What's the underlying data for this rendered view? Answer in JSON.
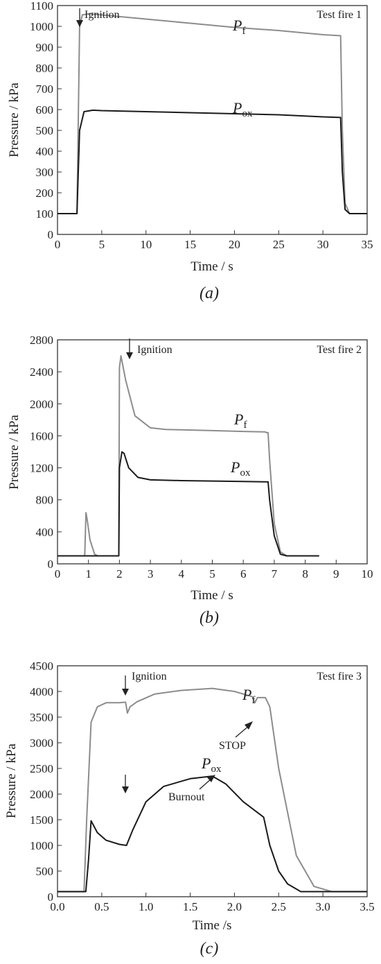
{
  "chart_data": [
    {
      "type": "line",
      "caption": "(a)",
      "test_label": "Test fire 1",
      "xlabel": "Time / s",
      "ylabel": "Pressure / kPa",
      "xlim": [
        0,
        35
      ],
      "ylim": [
        0,
        1100
      ],
      "xticks": [
        0,
        5,
        10,
        15,
        20,
        25,
        30,
        35
      ],
      "yticks": [
        0,
        100,
        200,
        300,
        400,
        500,
        600,
        700,
        800,
        900,
        1000,
        1100
      ],
      "series": [
        {
          "name": "Pf",
          "base": "P",
          "sub": "f",
          "color": "#8c8c8c",
          "x": [
            0,
            2.2,
            2.5,
            2.8,
            3.5,
            5,
            10,
            15,
            20,
            25,
            30,
            32.0,
            32.2,
            32.5,
            33,
            35
          ],
          "y": [
            100,
            100,
            1000,
            1055,
            1060,
            1055,
            1035,
            1015,
            995,
            980,
            960,
            955,
            500,
            150,
            100,
            100
          ]
        },
        {
          "name": "Pox",
          "base": "P",
          "sub": "ox",
          "color": "#1a1a1a",
          "x": [
            0,
            2.2,
            2.5,
            3.0,
            4,
            5,
            10,
            15,
            20,
            25,
            30,
            32.0,
            32.2,
            32.5,
            33,
            35
          ],
          "y": [
            100,
            100,
            500,
            590,
            597,
            595,
            590,
            585,
            580,
            575,
            565,
            562,
            300,
            120,
            100,
            100
          ]
        }
      ],
      "annotations": [
        {
          "text": "Ignition",
          "x": 2.8,
          "y": 1100
        }
      ]
    },
    {
      "type": "line",
      "caption": "(b)",
      "test_label": "Test fire 2",
      "xlabel": "Time / s",
      "ylabel": "Pressure / kPa",
      "xlim": [
        0,
        10
      ],
      "ylim": [
        0,
        2800
      ],
      "xticks": [
        0,
        1,
        2,
        3,
        4,
        5,
        6,
        7,
        8,
        9,
        10
      ],
      "yticks": [
        0,
        400,
        800,
        1200,
        1600,
        2000,
        2400,
        2800
      ],
      "series": [
        {
          "name": "Pf",
          "base": "P",
          "sub": "f",
          "color": "#8c8c8c",
          "x": [
            0,
            0.88,
            0.92,
            0.96,
            1.05,
            1.2,
            1.3,
            1.98,
            2.0,
            2.05,
            2.2,
            2.5,
            3,
            3.5,
            4,
            5,
            6,
            6.7,
            6.75,
            6.8,
            6.85,
            7.0,
            7.2,
            7.4,
            8.45
          ],
          "y": [
            100,
            100,
            640,
            550,
            300,
            120,
            100,
            100,
            2450,
            2600,
            2300,
            1850,
            1700,
            1680,
            1675,
            1665,
            1655,
            1650,
            1640,
            1640,
            1300,
            500,
            150,
            100,
            100
          ]
        },
        {
          "name": "Pox",
          "base": "P",
          "sub": "ox",
          "color": "#1a1a1a",
          "x": [
            0,
            1.98,
            2.0,
            2.08,
            2.15,
            2.3,
            2.6,
            3,
            4,
            5,
            6,
            6.8,
            6.85,
            7.0,
            7.2,
            7.4,
            8.45
          ],
          "y": [
            100,
            100,
            1200,
            1400,
            1380,
            1200,
            1080,
            1050,
            1040,
            1035,
            1030,
            1025,
            800,
            350,
            120,
            100,
            100
          ]
        }
      ],
      "annotations": [
        {
          "text": "Ignition",
          "x": 2.35,
          "y": 2800
        }
      ]
    },
    {
      "type": "line",
      "caption": "(c)",
      "test_label": "Test fire 3",
      "xlabel": "Time /s",
      "ylabel": "Pressure / kPa",
      "xlim": [
        0,
        3.5
      ],
      "ylim": [
        0,
        4500
      ],
      "xticks": [
        "0.0",
        "0.5",
        "1.0",
        "1.5",
        "2.0",
        "2.5",
        "3.0",
        "3.5"
      ],
      "yticks": [
        0,
        500,
        1000,
        1500,
        2000,
        2500,
        3000,
        3500,
        4000,
        4500
      ],
      "series": [
        {
          "name": "Pf",
          "base": "P",
          "sub": "f",
          "color": "#8c8c8c",
          "x": [
            0,
            0.3,
            0.33,
            0.38,
            0.45,
            0.55,
            0.7,
            0.77,
            0.79,
            0.82,
            0.9,
            1.1,
            1.4,
            1.75,
            2.0,
            2.2,
            2.23,
            2.26,
            2.35,
            2.4,
            2.5,
            2.7,
            2.9,
            3.1,
            3.5
          ],
          "y": [
            100,
            100,
            1500,
            3400,
            3700,
            3780,
            3780,
            3790,
            3580,
            3700,
            3800,
            3950,
            4020,
            4060,
            4000,
            3900,
            3780,
            3880,
            3880,
            3700,
            2500,
            800,
            200,
            100,
            100
          ]
        },
        {
          "name": "Pox",
          "base": "P",
          "sub": "ox",
          "color": "#1a1a1a",
          "x": [
            0,
            0.32,
            0.35,
            0.38,
            0.45,
            0.55,
            0.7,
            0.78,
            0.85,
            1.0,
            1.2,
            1.5,
            1.75,
            1.9,
            2.1,
            2.33,
            2.4,
            2.5,
            2.6,
            2.75,
            3.5
          ],
          "y": [
            100,
            100,
            700,
            1480,
            1250,
            1100,
            1020,
            1000,
            1300,
            1850,
            2150,
            2300,
            2350,
            2200,
            1850,
            1550,
            1000,
            500,
            250,
            100,
            100
          ]
        }
      ],
      "annotations": [
        {
          "text": "Ignition",
          "x": 0.78,
          "y": 4100
        },
        {
          "text": "STOP",
          "x": 2.25,
          "y": 3650
        },
        {
          "text": "Burnout",
          "x": 1.75,
          "y": 2300
        }
      ]
    }
  ]
}
